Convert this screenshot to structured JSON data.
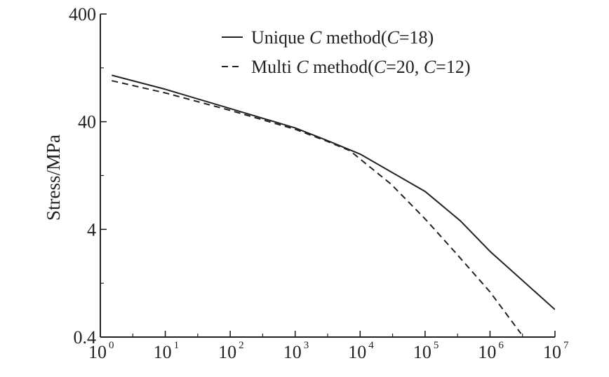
{
  "chart_data": {
    "type": "line",
    "xlabel": "",
    "ylabel": "Stress/MPa",
    "xscale": "log",
    "yscale": "log",
    "xlim": [
      1,
      10000000
    ],
    "ylim": [
      0.4,
      400
    ],
    "x_ticks": [
      {
        "base": "10",
        "exp": "0"
      },
      {
        "base": "10",
        "exp": "1"
      },
      {
        "base": "10",
        "exp": "2"
      },
      {
        "base": "10",
        "exp": "3"
      },
      {
        "base": "10",
        "exp": "4"
      },
      {
        "base": "10",
        "exp": "5"
      },
      {
        "base": "10",
        "exp": "6"
      },
      {
        "base": "10",
        "exp": "7"
      }
    ],
    "y_ticks": [
      "0.4",
      "4",
      "40",
      "400"
    ],
    "grid": false,
    "legend_position": "top-right",
    "legend_prefix": "",
    "series": [
      {
        "name": "Unique C method(C=18)",
        "legend_parts": [
          {
            "t": "Unique ",
            "italic": false
          },
          {
            "t": "C",
            "italic": true
          },
          {
            "t": " method(",
            "italic": false
          },
          {
            "t": "C",
            "italic": true
          },
          {
            "t": "=18)",
            "italic": false
          }
        ],
        "line_style": "solid",
        "x": [
          1.5,
          10,
          100,
          1000,
          3000,
          10000,
          100000,
          350000,
          1000000,
          10000000
        ],
        "y": [
          108,
          80,
          53,
          35,
          27,
          20,
          9,
          4.8,
          2.5,
          0.72
        ]
      },
      {
        "name": "Multi C method(C=20, C=12)",
        "legend_parts": [
          {
            "t": "Multi ",
            "italic": false
          },
          {
            "t": "C",
            "italic": true
          },
          {
            "t": " method(",
            "italic": false
          },
          {
            "t": "C",
            "italic": true
          },
          {
            "t": "=20, ",
            "italic": false
          },
          {
            "t": "C",
            "italic": true
          },
          {
            "t": "=12)",
            "italic": false
          }
        ],
        "line_style": "dashed",
        "x": [
          1.5,
          10,
          100,
          1000,
          3000,
          7000,
          10000,
          30000,
          100000,
          300000,
          1000000,
          3000000
        ],
        "y": [
          96,
          74,
          51,
          34,
          26.5,
          21.5,
          18,
          10.5,
          5,
          2.4,
          1.05,
          0.43
        ]
      }
    ]
  }
}
